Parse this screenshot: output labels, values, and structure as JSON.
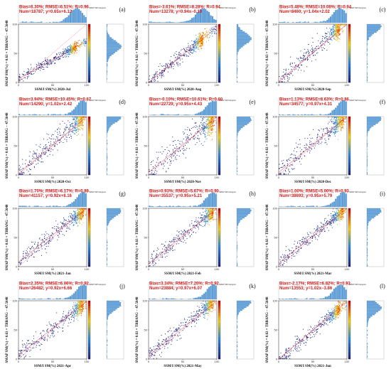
{
  "figure": {
    "y_axis_label": "SMAP SM(%) = 0.63 × TBBANG − 47.5648",
    "hist_label": "SMAP SM histogram"
  },
  "chart_data": [
    {
      "type": "scatter",
      "panel": "(a)",
      "xlabel": "SSM/I SM(%) 2020-Jul",
      "stats_line1": "Bias=6.30%; RMSE=6.51%; R=0.96",
      "stats_line2": "Num=18787; y=0.65x+6.12",
      "xlim": [
        0,
        100
      ],
      "ylim": [
        0,
        100
      ],
      "fit": {
        "slope": 0.65,
        "intercept": 6.12
      },
      "spread": 4,
      "dense_max": 85
    },
    {
      "type": "scatter",
      "panel": "(b)",
      "xlabel": "SSM/I SM(%) 2020-Aug",
      "stats_line1": "Bias=-3.61%; RMSE=8.28%; R=0.94",
      "stats_line2": "Num=13278; y=0.94x−0.10",
      "xlim": [
        0,
        100
      ],
      "ylim": [
        0,
        100
      ],
      "fit": {
        "slope": 0.94,
        "intercept": -0.1
      },
      "spread": 6,
      "dense_max": 80
    },
    {
      "type": "scatter",
      "panel": "(c)",
      "xlabel": "SSM/I SM(%) 2020-Sep",
      "stats_line1": "Bias=5.48%; RMSE=10.08%; R=0.94",
      "stats_line2": "Num=8460; y=1.04x+2.02",
      "xlim": [
        0,
        100
      ],
      "ylim": [
        0,
        100
      ],
      "fit": {
        "slope": 1.04,
        "intercept": 2.02
      },
      "spread": 8,
      "dense_max": 90
    },
    {
      "type": "scatter",
      "panel": "(d)",
      "xlabel": "SSM/I SM(%) 2020-Oct",
      "stats_line1": "Bias=3.94%; RMSE=10.45%; R=0.87",
      "stats_line2": "Num=14290; y=1.02x+2.42",
      "xlim": [
        0,
        100
      ],
      "ylim": [
        0,
        100
      ],
      "fit": {
        "slope": 1.02,
        "intercept": 2.42
      },
      "spread": 10,
      "dense_max": 95
    },
    {
      "type": "scatter",
      "panel": "(e)",
      "xlabel": "SSM/I SM(%) 2020-Nov",
      "stats_line1": "Bias=-0.10%; RMSE=10.61%; R=0.80",
      "stats_line2": "Num=22729; y=0.95x+4.43",
      "xlim": [
        0,
        100
      ],
      "ylim": [
        0,
        100
      ],
      "fit": {
        "slope": 0.95,
        "intercept": 4.43
      },
      "spread": 11,
      "dense_max": 95
    },
    {
      "type": "scatter",
      "panel": "(f)",
      "xlabel": "SSM/I SM(%) 2020-Dec",
      "stats_line1": "Bias=1.13%; RMSE=8.63%; R=0.86",
      "stats_line2": "Num=34577; y=0.97x+4.31",
      "xlim": [
        0,
        100
      ],
      "ylim": [
        0,
        100
      ],
      "fit": {
        "slope": 0.97,
        "intercept": 4.31
      },
      "spread": 9,
      "dense_max": 95
    },
    {
      "type": "scatter",
      "panel": "(g)",
      "xlabel": "SSM/I SM(%) 2021-Jan",
      "stats_line1": "Bias=1.70%; RMSE=6.17%; R=0.89",
      "stats_line2": "Num=41157; y=0.92x+8.16",
      "xlim": [
        0,
        100
      ],
      "ylim": [
        0,
        100
      ],
      "fit": {
        "slope": 0.92,
        "intercept": 8.16
      },
      "spread": 7,
      "dense_max": 95
    },
    {
      "type": "scatter",
      "panel": "(h)",
      "xlabel": "SSM/I SM(%) 2021-Feb",
      "stats_line1": "Bias=0.93%; RMSE=5.67%; R=0.90",
      "stats_line2": "Num=35537; y=0.95x+5.21",
      "xlim": [
        0,
        100
      ],
      "ylim": [
        0,
        100
      ],
      "fit": {
        "slope": 0.95,
        "intercept": 5.21
      },
      "spread": 7,
      "dense_max": 95
    },
    {
      "type": "scatter",
      "panel": "(i)",
      "xlabel": "SSM/I SM(%) 2021-Mar",
      "stats_line1": "Bias=1.00%; RMSE=5.00%; R=0.93",
      "stats_line2": "Num=38693; y=0.95x+5.79",
      "xlim": [
        0,
        100
      ],
      "ylim": [
        0,
        100
      ],
      "fit": {
        "slope": 0.95,
        "intercept": 5.79
      },
      "spread": 6,
      "dense_max": 95
    },
    {
      "type": "scatter",
      "panel": "(j)",
      "xlabel": "SSM/I SM(%) 2021-Apr",
      "stats_line1": "Bias=2.35%; RMSE=6.06%; R=0.92",
      "stats_line2": "Num=26482; y=0.92x+6.66",
      "xlim": [
        0,
        100
      ],
      "ylim": [
        0,
        100
      ],
      "fit": {
        "slope": 0.92,
        "intercept": 6.66
      },
      "spread": 7,
      "dense_max": 95
    },
    {
      "type": "scatter",
      "panel": "(k)",
      "xlabel": "SSM/I SM(%) 2021-May",
      "stats_line1": "Bias=3.34%; RMSE=7.20%; R=0.92",
      "stats_line2": "Num=23884; y=0.97x+6.07",
      "xlim": [
        0,
        100
      ],
      "ylim": [
        0,
        100
      ],
      "fit": {
        "slope": 0.97,
        "intercept": 6.07
      },
      "spread": 7,
      "dense_max": 95
    },
    {
      "type": "scatter",
      "panel": "(l)",
      "xlabel": "SSM/I SM(%) 2021-Jun",
      "stats_line1": "Bias=-2.17%; RMSE=6.82%; R=0.93",
      "stats_line2": "Num=13553; y=1.02x−3.86",
      "xlim": [
        0,
        100
      ],
      "ylim": [
        0,
        100
      ],
      "fit": {
        "slope": 1.02,
        "intercept": -3.86
      },
      "spread": 6,
      "dense_max": 90
    }
  ],
  "colors": {
    "scatter_low": "#1a237e",
    "scatter_mid": "#1e88e5",
    "scatter_high": "#ffd600",
    "scatter_peak": "#d50000",
    "fit_line": "#e53935",
    "one_to_one": "#d81b60",
    "histogram": "#5b9bd5",
    "stats_text": "#d41a1a"
  }
}
